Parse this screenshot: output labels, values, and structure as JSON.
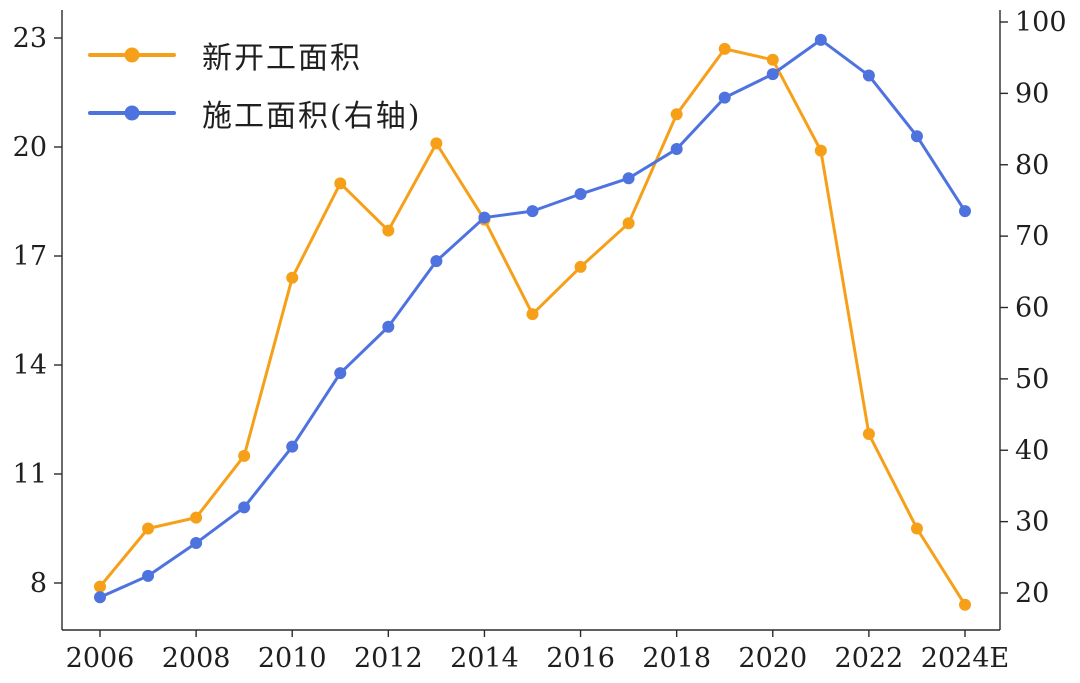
{
  "chart_data": {
    "type": "line",
    "categories": [
      "2006",
      "2007",
      "2008",
      "2009",
      "2010",
      "2011",
      "2012",
      "2013",
      "2014",
      "2015",
      "2016",
      "2017",
      "2018",
      "2019",
      "2020",
      "2021",
      "2022",
      "2023",
      "2024E"
    ],
    "x_tick_labels": [
      "2006",
      "2008",
      "2010",
      "2012",
      "2014",
      "2016",
      "2018",
      "2020",
      "2022",
      "2024E"
    ],
    "x_tick_indices": [
      0,
      2,
      4,
      6,
      8,
      10,
      12,
      14,
      16,
      18
    ],
    "series": [
      {
        "name": "新开工面积",
        "axis": "left",
        "color": "#F6A01A",
        "values": [
          7.9,
          9.5,
          9.8,
          11.5,
          16.4,
          19.0,
          17.7,
          20.1,
          18.0,
          15.4,
          16.7,
          17.9,
          20.9,
          22.7,
          22.4,
          19.9,
          12.1,
          9.5,
          7.4
        ]
      },
      {
        "name": "施工面积(右轴)",
        "axis": "right",
        "color": "#4E73DF",
        "values": [
          19.4,
          22.4,
          27.0,
          32.0,
          40.5,
          50.8,
          57.3,
          66.5,
          72.6,
          73.5,
          75.9,
          78.1,
          82.2,
          89.4,
          92.7,
          97.5,
          92.5,
          84.0,
          73.5
        ]
      }
    ],
    "left_axis": {
      "ticks": [
        8,
        11,
        14,
        17,
        20,
        23
      ],
      "range": [
        6.8,
        23.5
      ]
    },
    "right_axis": {
      "ticks": [
        20,
        30,
        40,
        50,
        60,
        70,
        80,
        90,
        100
      ],
      "range": [
        15,
        101
      ]
    },
    "legend_position": "top-left",
    "grid": false,
    "title": "",
    "colors": {
      "axis_text": "#1f1f1f",
      "last_tick_highlight": "#EA2A25",
      "spine": "#2b2b2b"
    }
  }
}
